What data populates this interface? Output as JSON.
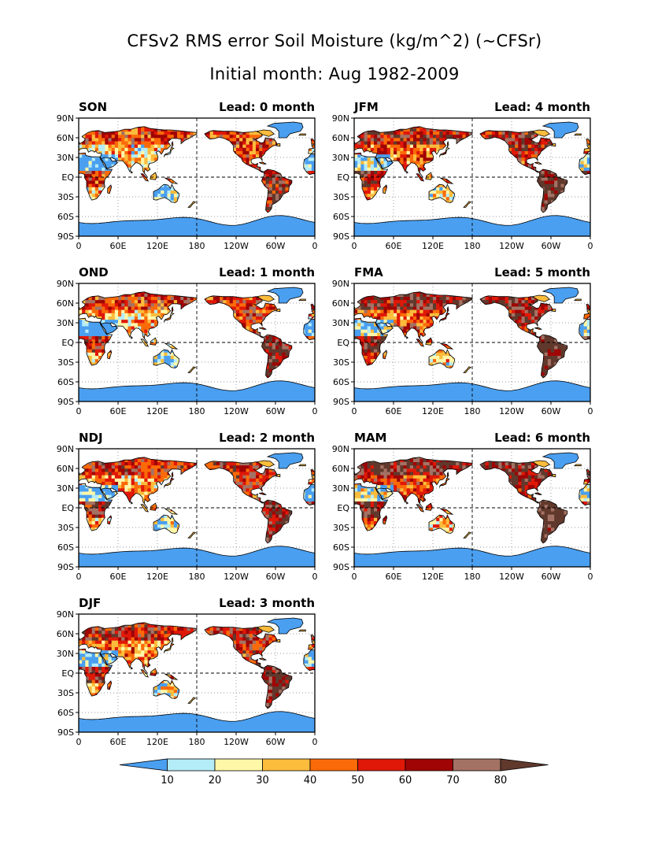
{
  "header": {
    "title": "CFSv2 RMS error Soil Moisture (kg/m^2) (~CFSr)",
    "subtitle": "Initial month: Aug 1982-2009"
  },
  "axes": {
    "lat_labels": [
      "90N",
      "60N",
      "30N",
      "EQ",
      "30S",
      "60S",
      "90S"
    ],
    "lon_labels": [
      "0",
      "60E",
      "120E",
      "180",
      "120W",
      "60W",
      "0"
    ],
    "lead_prefix": "Lead:",
    "lead_suffix": "month"
  },
  "panels": [
    {
      "season": "SON",
      "lead": "0"
    },
    {
      "season": "JFM",
      "lead": "4"
    },
    {
      "season": "OND",
      "lead": "1"
    },
    {
      "season": "FMA",
      "lead": "5"
    },
    {
      "season": "NDJ",
      "lead": "2"
    },
    {
      "season": "MAM",
      "lead": "6"
    },
    {
      "season": "DJF",
      "lead": "3"
    }
  ],
  "colorbar": {
    "levels": [
      "10",
      "20",
      "30",
      "40",
      "50",
      "60",
      "70",
      "80"
    ],
    "colors": [
      "#4a9ff0",
      "#b4ecf8",
      "#fff7a8",
      "#fcbc3c",
      "#fb6a08",
      "#e01808",
      "#a00404",
      "#a47264",
      "#60382c"
    ]
  },
  "map_colors": {
    "ocean": "#ffffff",
    "ice": "#4a9ff0",
    "coast": "#000000"
  }
}
